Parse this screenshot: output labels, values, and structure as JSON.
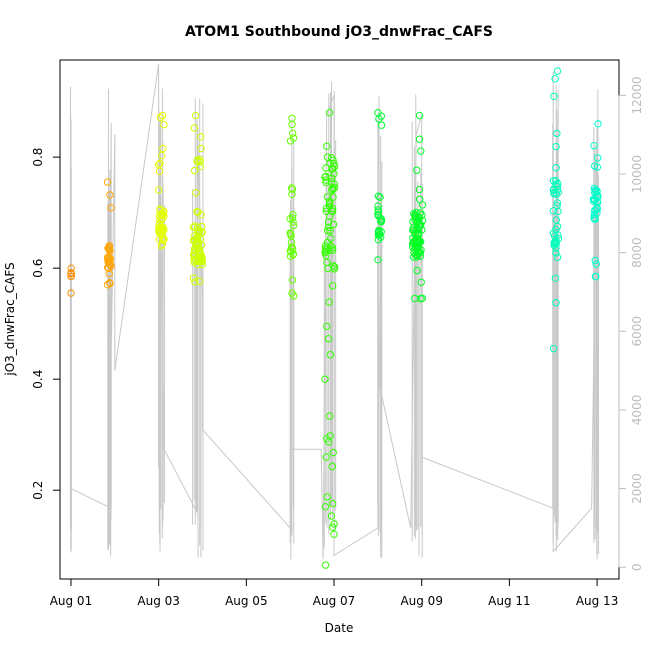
{
  "chart_data": {
    "type": "scatter",
    "title": "ATOM1 Southbound jO3_dnwFrac_CAFS",
    "xlabel": "Date",
    "ylabel": "jO3_dnwFrac_CAFS",
    "y2label": "",
    "xlim": [
      "2016-07-31T18:00",
      "2016-08-13T12:00"
    ],
    "ylim": [
      0.04,
      0.975
    ],
    "y2lim": [
      -300,
      12900
    ],
    "x_ticks": [
      {
        "date": "2016-08-01T00:00",
        "label": "Aug 01"
      },
      {
        "date": "2016-08-03T00:00",
        "label": "Aug 03"
      },
      {
        "date": "2016-08-05T00:00",
        "label": "Aug 05"
      },
      {
        "date": "2016-08-07T00:00",
        "label": "Aug 07"
      },
      {
        "date": "2016-08-09T00:00",
        "label": "Aug 09"
      },
      {
        "date": "2016-08-11T00:00",
        "label": "Aug 11"
      },
      {
        "date": "2016-08-13T00:00",
        "label": "Aug 13"
      }
    ],
    "y_ticks": [
      {
        "value": 0.2,
        "label": "0.2"
      },
      {
        "value": 0.4,
        "label": "0.4"
      },
      {
        "value": 0.6,
        "label": "0.6"
      },
      {
        "value": 0.8,
        "label": "0.8"
      }
    ],
    "y2_ticks": [
      {
        "value": 0,
        "label": "0"
      },
      {
        "value": 2000,
        "label": "2000"
      },
      {
        "value": 4000,
        "label": "4000"
      },
      {
        "value": 6000,
        "label": "6000"
      },
      {
        "value": 8000,
        "label": "8000"
      },
      {
        "value": 10000,
        "label": "10000"
      },
      {
        "value": 12000,
        "label": "12000"
      }
    ],
    "grid": false,
    "legend": "none",
    "colors": {
      "altitude_line": "#c8c8c8",
      "flight_colors": [
        "#ff8c00",
        "#ffa500",
        "#e5ff00",
        "#ccff00",
        "#66ff00",
        "#33ff00",
        "#00ff33",
        "#00ff22",
        "#00ffbb",
        "#00ffcc"
      ]
    },
    "series": [
      {
        "flight_date": "2016-08-01",
        "start": "2016-08-01T00:00",
        "end": "2016-08-01T00:10",
        "y_median": 0.59,
        "y_min": 0.555,
        "y_max": 0.6,
        "color": "#ff8c00"
      },
      {
        "flight_date": "2016-08-01",
        "start": "2016-08-01T20:00",
        "end": "2016-08-01T22:00",
        "y_median": 0.62,
        "y_min": 0.57,
        "y_max": 0.755,
        "color": "#ffa500"
      },
      {
        "flight_date": "2016-08-03",
        "start": "2016-08-03T00:00",
        "end": "2016-08-03T03:00",
        "y_median": 0.68,
        "y_min": 0.64,
        "y_max": 0.875,
        "color": "#e5ff00"
      },
      {
        "flight_date": "2016-08-03",
        "start": "2016-08-03T19:00",
        "end": "2016-08-04T00:00",
        "y_median": 0.64,
        "y_min": 0.575,
        "y_max": 0.875,
        "color": "#ccff00"
      },
      {
        "flight_date": "2016-08-06",
        "start": "2016-08-06T00:00",
        "end": "2016-08-06T02:00",
        "y_median": 0.66,
        "y_min": 0.55,
        "y_max": 0.87,
        "color": "#66ff00"
      },
      {
        "flight_date": "2016-08-06",
        "start": "2016-08-06T19:00",
        "end": "2016-08-07T00:30",
        "y_median": 0.7,
        "y_min": 0.065,
        "y_max": 0.88,
        "color": "#33ff00"
      },
      {
        "flight_date": "2016-08-08",
        "start": "2016-08-08T00:00",
        "end": "2016-08-08T02:00",
        "y_median": 0.68,
        "y_min": 0.615,
        "y_max": 0.88,
        "color": "#00ff33"
      },
      {
        "flight_date": "2016-08-08",
        "start": "2016-08-08T19:00",
        "end": "2016-08-09T00:30",
        "y_median": 0.66,
        "y_min": 0.545,
        "y_max": 0.875,
        "color": "#00ff22"
      },
      {
        "flight_date": "2016-08-12",
        "start": "2016-08-12T00:00",
        "end": "2016-08-12T03:00",
        "y_median": 0.7,
        "y_min": 0.455,
        "y_max": 0.955,
        "color": "#00ffbb"
      },
      {
        "flight_date": "2016-08-12",
        "start": "2016-08-12T22:00",
        "end": "2016-08-13T00:30",
        "y_median": 0.71,
        "y_min": 0.585,
        "y_max": 0.86,
        "color": "#00ffcc"
      }
    ],
    "altitude_path": [
      [
        "2016-08-01T00:00",
        11400
      ],
      [
        "2016-08-01T00:00",
        2000
      ],
      [
        "2016-08-01T22:00",
        1500
      ],
      [
        "2016-08-01T22:00",
        11300
      ],
      [
        "2016-08-01T21:00",
        600
      ],
      [
        "2016-08-01T21:30",
        3900
      ],
      [
        "2016-08-02T00:00",
        11000
      ],
      [
        "2016-08-02T00:00",
        5000
      ],
      [
        "2016-08-03T00:00",
        12800
      ],
      [
        "2016-08-03T00:00",
        2500
      ],
      [
        "2016-08-03T00:00",
        12000
      ],
      [
        "2016-08-03T03:00",
        3000
      ],
      [
        "2016-08-03T21:00",
        1400
      ],
      [
        "2016-08-03T21:00",
        11400
      ],
      [
        "2016-08-04T00:00",
        7000
      ],
      [
        "2016-08-04T00:00",
        3500
      ],
      [
        "2016-08-06T00:00",
        1000
      ],
      [
        "2016-08-06T00:00",
        3000
      ],
      [
        "2016-08-06T17:00",
        3000
      ],
      [
        "2016-08-06T18:00",
        200
      ],
      [
        "2016-08-06T20:00",
        11500
      ],
      [
        "2016-08-07T00:00",
        12000
      ],
      [
        "2016-08-07T00:00",
        300
      ],
      [
        "2016-08-08T00:00",
        1000
      ],
      [
        "2016-08-08T00:00",
        11400
      ],
      [
        "2016-08-08T01:00",
        4600
      ],
      [
        "2016-08-08T18:00",
        1000
      ],
      [
        "2016-08-08T21:00",
        11000
      ],
      [
        "2016-08-09T00:00",
        11500
      ],
      [
        "2016-08-09T00:00",
        2800
      ],
      [
        "2016-08-12T00:00",
        1500
      ],
      [
        "2016-08-12T00:00",
        12600
      ],
      [
        "2016-08-12T00:00",
        400
      ],
      [
        "2016-08-12T21:00",
        1500
      ],
      [
        "2016-08-13T00:00",
        11200
      ],
      [
        "2016-08-13T00:00",
        200
      ]
    ]
  }
}
